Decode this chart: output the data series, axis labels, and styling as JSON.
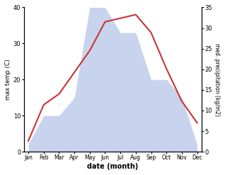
{
  "months": [
    "Jan",
    "Feb",
    "Mar",
    "Apr",
    "May",
    "Jun",
    "Jul",
    "Aug",
    "Sep",
    "Oct",
    "Nov",
    "Dec"
  ],
  "temperature": [
    3,
    13,
    16,
    22,
    28,
    36,
    37,
    38,
    33,
    23,
    14,
    8
  ],
  "precipitation": [
    2,
    10,
    10,
    15,
    40,
    40,
    33,
    33,
    20,
    20,
    15,
    2
  ],
  "temp_color": "#cc3333",
  "precip_fill_color": "#c8d4ee",
  "temp_ylim": [
    0,
    40
  ],
  "precip_ylim": [
    0,
    35
  ],
  "temp_yticks": [
    0,
    10,
    20,
    30,
    40
  ],
  "precip_yticks": [
    0,
    5,
    10,
    15,
    20,
    25,
    30,
    35
  ],
  "xlabel": "date (month)",
  "ylabel_left": "max temp (C)",
  "ylabel_right": "med. precipitation (kg/m2)"
}
